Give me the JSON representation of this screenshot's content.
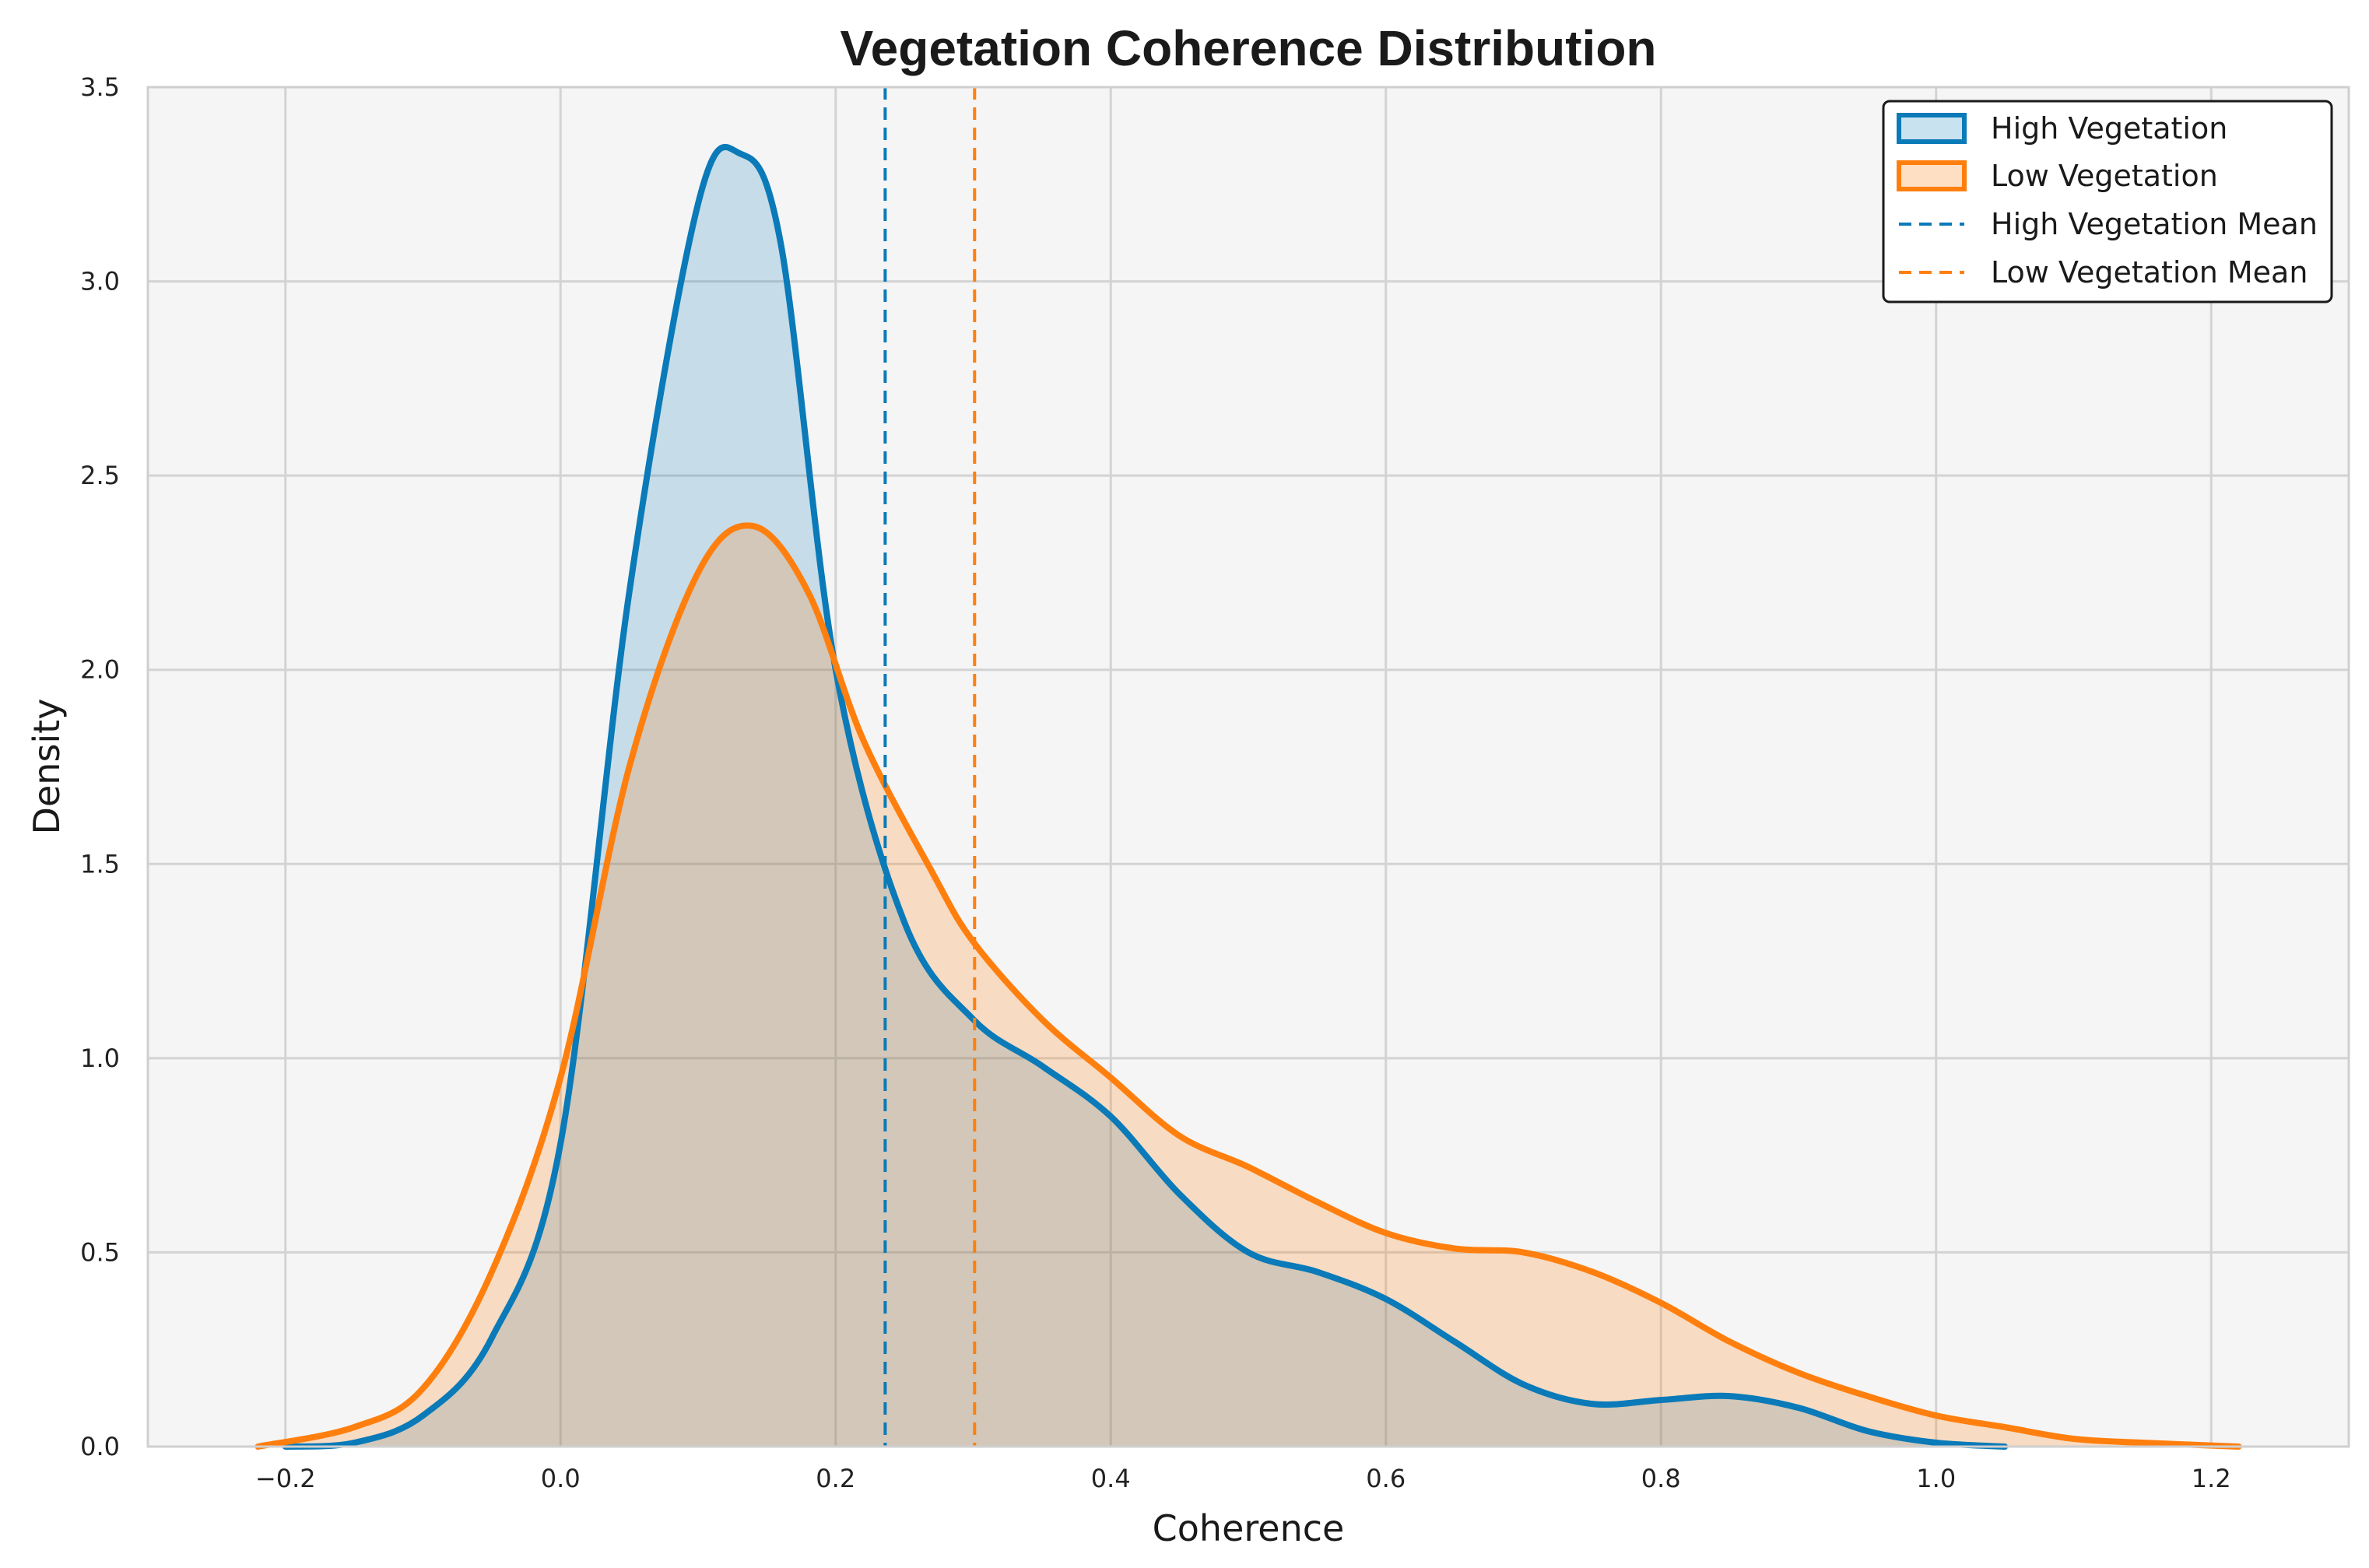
{
  "chart_data": {
    "type": "area",
    "title": "Vegetation Coherence Distribution",
    "xlabel": "Coherence",
    "ylabel": "Density",
    "xlim": [
      -0.3,
      1.3
    ],
    "ylim": [
      0,
      3.5
    ],
    "xticks": [
      -0.2,
      0.0,
      0.2,
      0.4,
      0.6,
      0.8,
      1.0,
      1.2
    ],
    "xtick_labels": [
      "−0.2",
      "0.0",
      "0.2",
      "0.4",
      "0.6",
      "0.8",
      "1.0",
      "1.2"
    ],
    "yticks": [
      0.0,
      0.5,
      1.0,
      1.5,
      2.0,
      2.5,
      3.0,
      3.5
    ],
    "ytick_labels": [
      "0.0",
      "0.5",
      "1.0",
      "1.5",
      "2.0",
      "2.5",
      "3.0",
      "3.5"
    ],
    "grid": true,
    "legend_position": "top-right",
    "series": [
      {
        "name": "High Vegetation",
        "color": "#0a7ab8",
        "fill": "#0a7ab8",
        "x": [
          -0.2,
          -0.15,
          -0.1,
          -0.05,
          0.0,
          0.05,
          0.1,
          0.13,
          0.16,
          0.2,
          0.25,
          0.3,
          0.35,
          0.4,
          0.45,
          0.5,
          0.55,
          0.6,
          0.65,
          0.7,
          0.75,
          0.8,
          0.85,
          0.9,
          0.95,
          1.0,
          1.05
        ],
        "values": [
          0.0,
          0.01,
          0.08,
          0.28,
          0.78,
          2.2,
          3.2,
          3.33,
          3.1,
          2.0,
          1.35,
          1.1,
          0.98,
          0.85,
          0.65,
          0.5,
          0.45,
          0.38,
          0.27,
          0.16,
          0.11,
          0.12,
          0.13,
          0.1,
          0.04,
          0.01,
          0.0
        ]
      },
      {
        "name": "Low Vegetation",
        "color": "#ff7f0e",
        "fill": "#ff7f0e",
        "x": [
          -0.22,
          -0.15,
          -0.1,
          -0.05,
          0.0,
          0.05,
          0.1,
          0.14,
          0.18,
          0.22,
          0.27,
          0.3,
          0.35,
          0.4,
          0.45,
          0.5,
          0.55,
          0.6,
          0.65,
          0.7,
          0.75,
          0.8,
          0.85,
          0.9,
          0.95,
          1.0,
          1.05,
          1.1,
          1.15,
          1.22
        ],
        "values": [
          0.0,
          0.05,
          0.15,
          0.45,
          0.95,
          1.75,
          2.25,
          2.37,
          2.2,
          1.82,
          1.48,
          1.3,
          1.1,
          0.95,
          0.8,
          0.72,
          0.63,
          0.55,
          0.51,
          0.5,
          0.45,
          0.37,
          0.27,
          0.19,
          0.13,
          0.08,
          0.05,
          0.02,
          0.01,
          0.0
        ]
      }
    ],
    "mean_lines": [
      {
        "name": "High Vegetation Mean",
        "x": 0.236,
        "color": "#0a7ab8"
      },
      {
        "name": "Low Vegetation Mean",
        "x": 0.301,
        "color": "#ff7f0e"
      }
    ]
  }
}
